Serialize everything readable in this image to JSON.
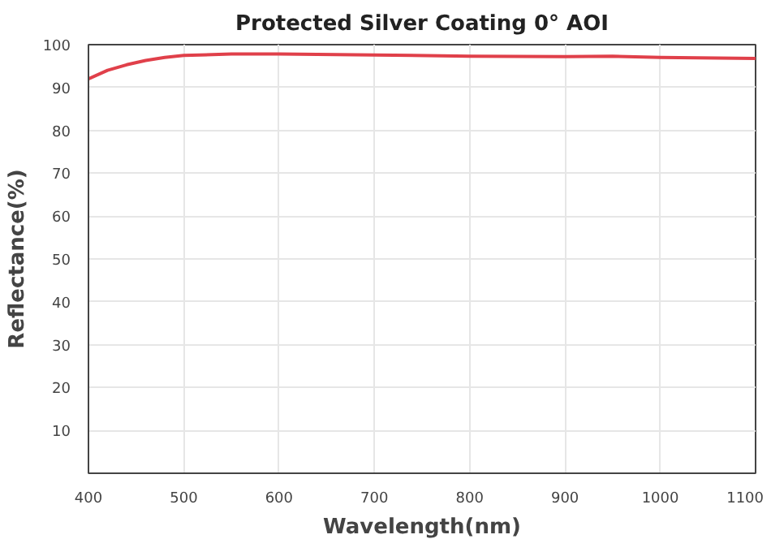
{
  "chart_data": {
    "type": "line",
    "title": "Protected Silver Coating 0° AOI",
    "xlabel": "Wavelength(nm)",
    "ylabel": "Reflectance(%)",
    "x": [
      400,
      420,
      440,
      460,
      480,
      500,
      550,
      600,
      700,
      800,
      900,
      950,
      1000,
      1100
    ],
    "series": [
      {
        "color": "#e0404a",
        "values": [
          92.0,
          94.0,
          95.3,
          96.3,
          97.0,
          97.5,
          97.8,
          97.8,
          97.6,
          97.3,
          97.2,
          97.3,
          97.0,
          96.8
        ]
      }
    ],
    "xlim": [
      400,
      1100
    ],
    "ylim": [
      0,
      100
    ],
    "xticks": [
      400,
      500,
      600,
      700,
      800,
      900,
      1000,
      1100
    ],
    "yticks": [
      10,
      20,
      30,
      40,
      50,
      60,
      70,
      80,
      90,
      100
    ],
    "grid": true,
    "marker": "none",
    "line_style": "solid"
  }
}
